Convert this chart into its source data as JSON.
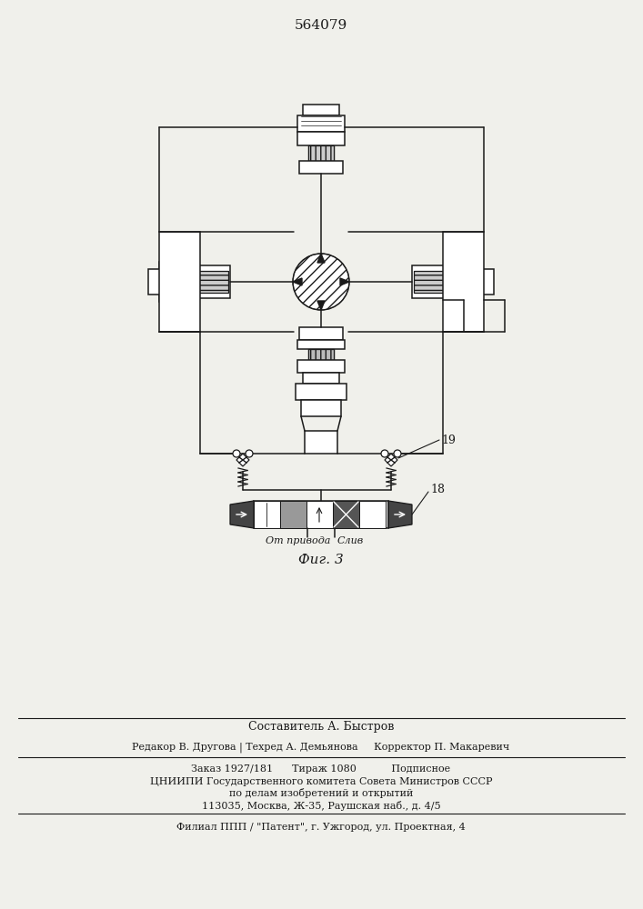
{
  "patent_number": "564079",
  "fig_label": "Фиг. 3",
  "label_18": "18",
  "label_19": "19",
  "text_ot_privoda": "От привода",
  "text_sliv": "Слив",
  "footer_line1": "Составитель А. Быстров",
  "footer_line2": "Редакор В. Другова | Техред А. Демьянова     Корректор П. Макаревич",
  "footer_line3": "Заказ 1927/181      Тираж 1080           Подписное",
  "footer_line4": "ЦНИИПИ Государственного комитета Совета Министров СССР",
  "footer_line5": "по делам изобретений и открытий",
  "footer_line6": "113035, Москва, Ж-35, Раушская наб., д. 4/5",
  "footer_line7": "Филиал ППП / \"Патент\", г. Ужгород, ул. Проектная, 4",
  "bg_color": "#f0f0eb",
  "line_color": "#1a1a1a"
}
